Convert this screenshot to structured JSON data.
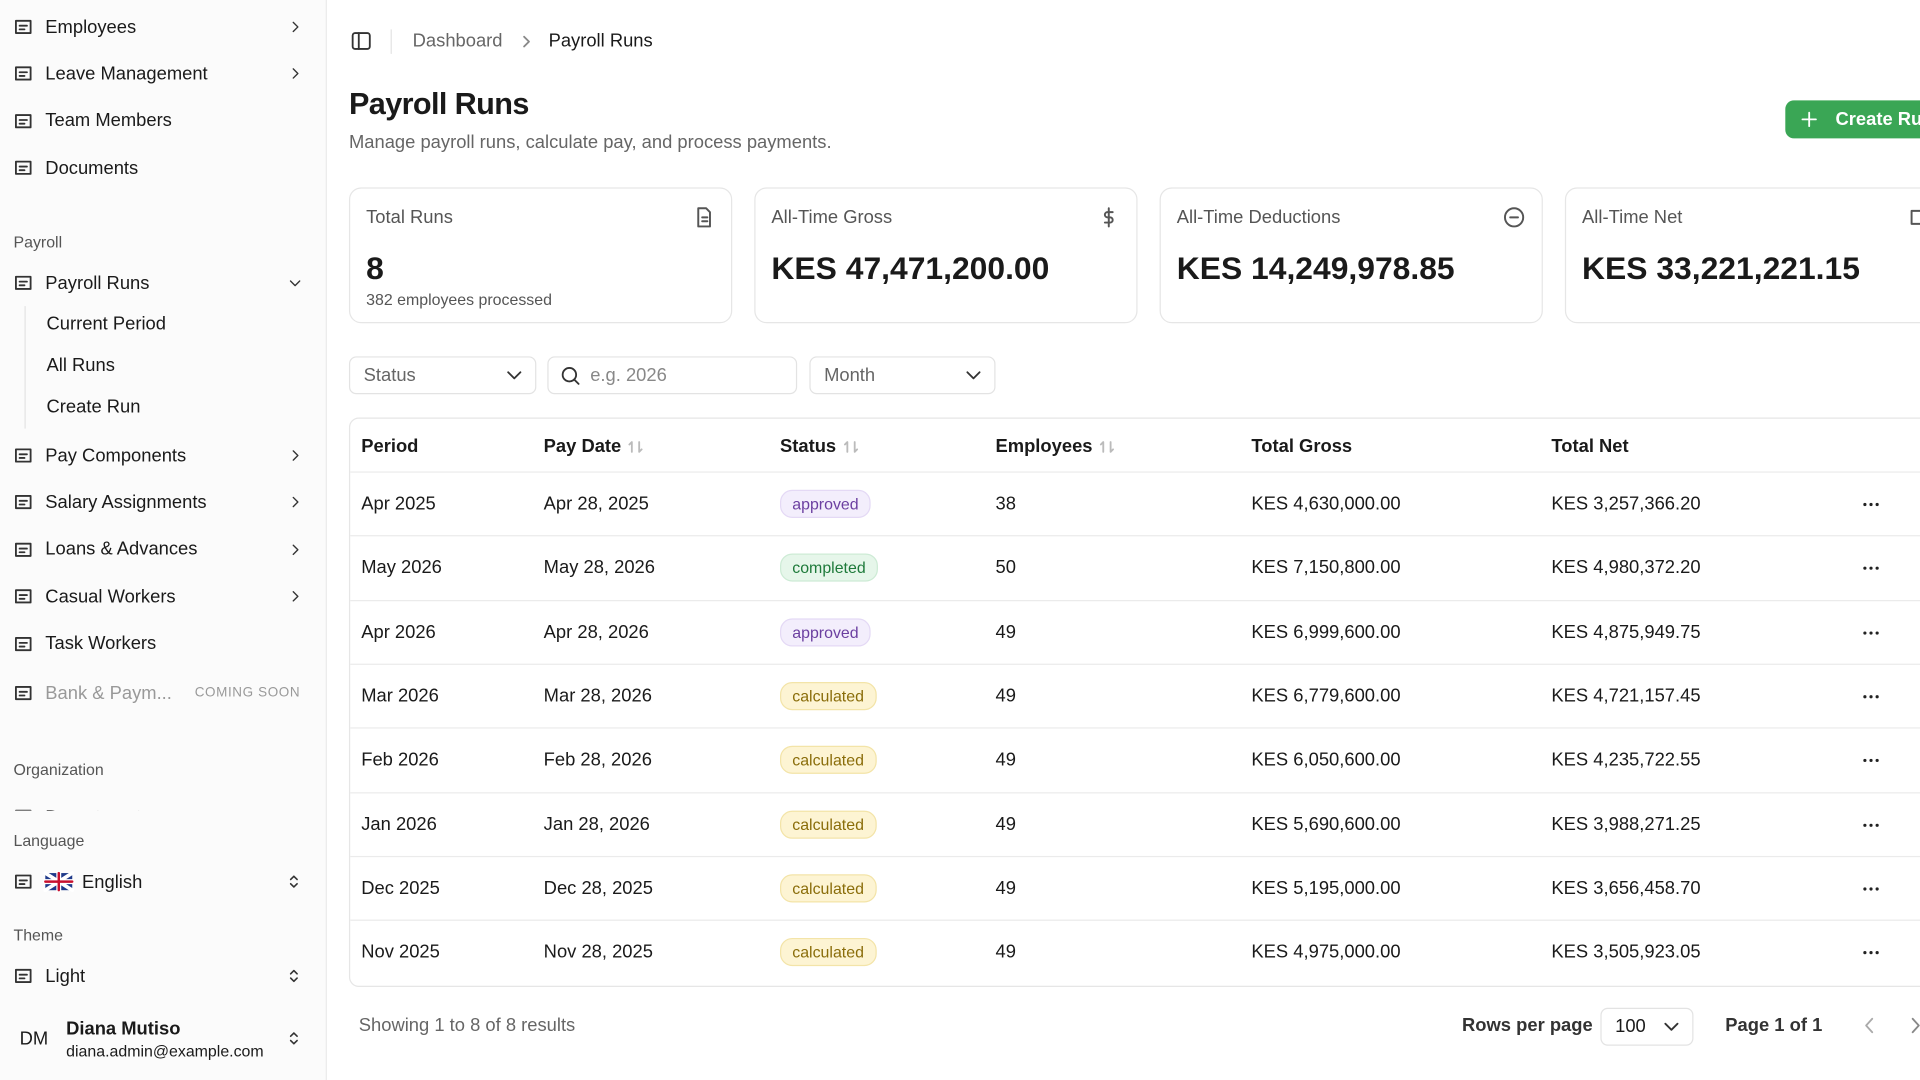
{
  "sidebar": {
    "top_items": [
      "Employees",
      "Leave Management",
      "Team Members",
      "Documents"
    ],
    "payroll": {
      "label": "Payroll",
      "item": "Payroll Runs",
      "sub_items": [
        "Current Period",
        "All Runs",
        "Create Run"
      ],
      "items": [
        "Pay Components",
        "Salary Assignments",
        "Loans & Advances",
        "Casual Workers",
        "Task Workers"
      ],
      "disabled_item": "Bank & Paym...",
      "disabled_badge": "COMING SOON"
    },
    "organization": {
      "label": "Organization",
      "item": "Departments"
    },
    "language": {
      "label": "Language",
      "value": "English"
    },
    "theme": {
      "label": "Theme",
      "value": "Light"
    },
    "user": {
      "initials": "DM",
      "name": "Diana Mutiso",
      "email": "diana.admin@example.com"
    }
  },
  "breadcrumb": [
    "Dashboard",
    "Payroll Runs"
  ],
  "header": {
    "title": "Payroll Runs",
    "subtitle": "Manage payroll runs, calculate pay, and process payments.",
    "button": "Create Run"
  },
  "stats": [
    {
      "label": "Total Runs",
      "value": "8",
      "note": "382 employees processed"
    },
    {
      "label": "All-Time Gross",
      "value": "KES 47,471,200.00"
    },
    {
      "label": "All-Time Deductions",
      "value": "KES 14,249,978.85"
    },
    {
      "label": "All-Time Net",
      "value": "KES 33,221,221.15"
    }
  ],
  "filters": {
    "status": "Status",
    "search_placeholder": "e.g. 2026",
    "month": "Month"
  },
  "table": {
    "columns": [
      "Period",
      "Pay Date",
      "Status",
      "Employees",
      "Total Gross",
      "Total Net"
    ],
    "rows": [
      [
        "Apr 2025",
        "Apr 28, 2025",
        "approved",
        38,
        "KES 4,630,000.00",
        "KES 3,257,366.20"
      ],
      [
        "May 2026",
        "May 28, 2026",
        "completed",
        50,
        "KES 7,150,800.00",
        "KES 4,980,372.20"
      ],
      [
        "Apr 2026",
        "Apr 28, 2026",
        "approved",
        49,
        "KES 6,999,600.00",
        "KES 4,875,949.75"
      ],
      [
        "Mar 2026",
        "Mar 28, 2026",
        "calculated",
        49,
        "KES 6,779,600.00",
        "KES 4,721,157.45"
      ],
      [
        "Feb 2026",
        "Feb 28, 2026",
        "calculated",
        49,
        "KES 6,050,600.00",
        "KES 4,235,722.55"
      ],
      [
        "Jan 2026",
        "Jan 28, 2026",
        "calculated",
        49,
        "KES 5,690,600.00",
        "KES 3,988,271.25"
      ],
      [
        "Dec 2025",
        "Dec 28, 2025",
        "calculated",
        49,
        "KES 5,195,000.00",
        "KES 3,656,458.70"
      ],
      [
        "Nov 2025",
        "Nov 28, 2025",
        "calculated",
        49,
        "KES 4,975,000.00",
        "KES 3,505,923.05"
      ]
    ]
  },
  "footer": {
    "showing": "Showing 1 to 8 of 8 results",
    "rows_per_page_label": "Rows per page",
    "rows_per_page": "100",
    "page": "Page 1 of 1"
  }
}
